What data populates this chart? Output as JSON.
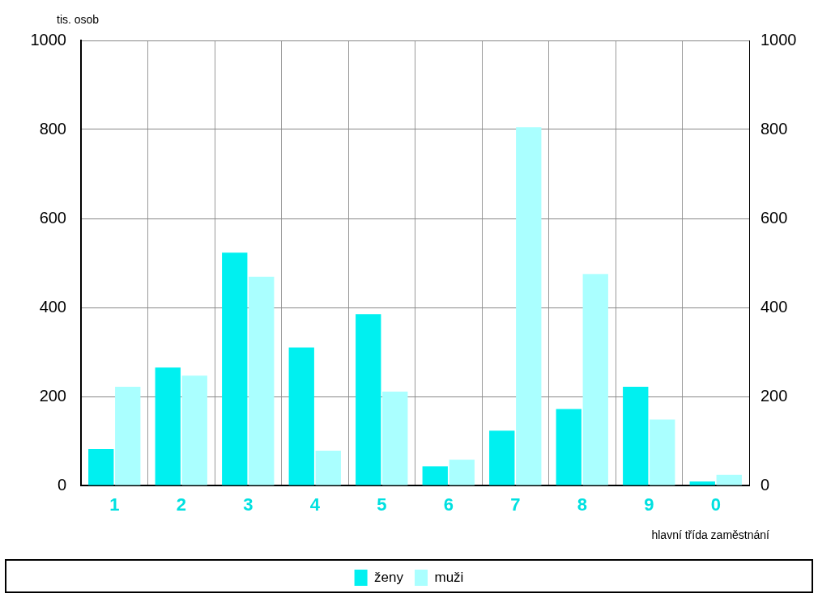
{
  "chart_data": {
    "type": "bar",
    "ylabel": "tis. osob",
    "xlabel": "hlavní třída zaměstnání",
    "categories": [
      "1",
      "2",
      "3",
      "4",
      "5",
      "6",
      "7",
      "8",
      "9",
      "0"
    ],
    "series": [
      {
        "name": "ženy",
        "color": "#00f0f0",
        "values": [
          82,
          265,
          523,
          310,
          385,
          43,
          123,
          172,
          222,
          9
        ]
      },
      {
        "name": "muži",
        "color": "#aaffff",
        "values": [
          222,
          247,
          469,
          78,
          211,
          58,
          805,
          475,
          148,
          24
        ]
      }
    ],
    "ylim": [
      0,
      1000
    ],
    "yticks": [
      0,
      200,
      400,
      600,
      800,
      1000
    ],
    "y2lim": [
      0,
      1000
    ],
    "y2ticks": [
      0,
      200,
      400,
      600,
      800,
      1000
    ],
    "grid": true,
    "legend": "bottom"
  }
}
